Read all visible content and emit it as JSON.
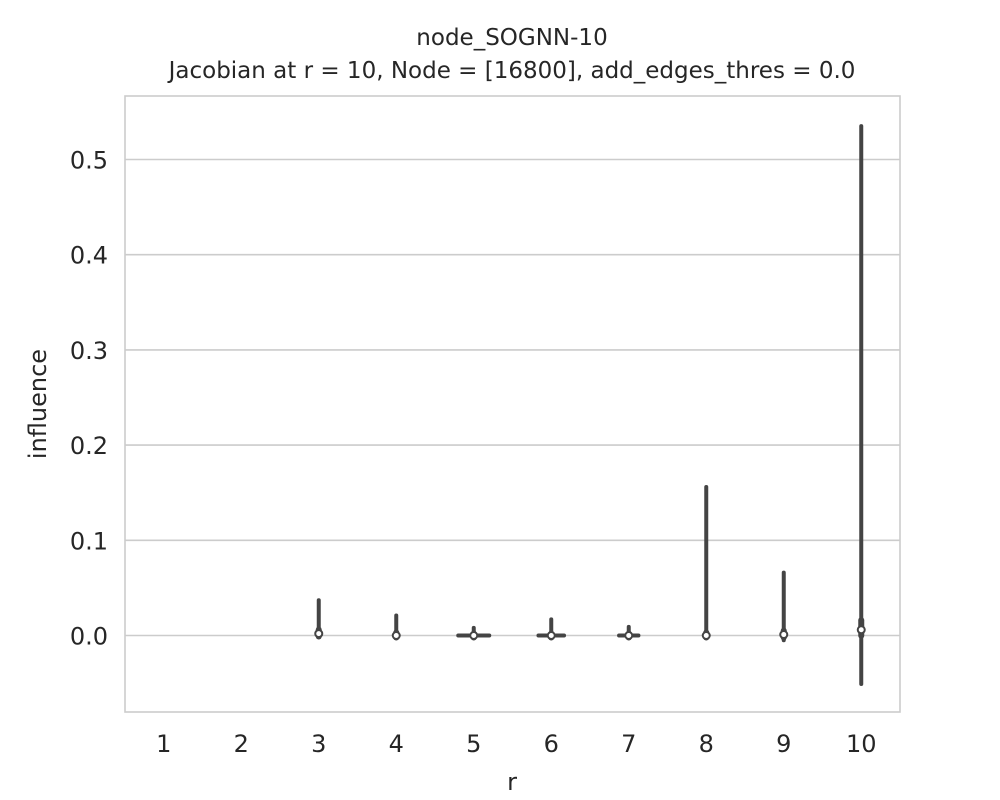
{
  "chart_data": {
    "type": "violin",
    "title": "node_SOGNN-10",
    "subtitle": "Jacobian at r = 10, Node = [16800], add_edges_thres = 0.0",
    "xlabel": "r",
    "ylabel": "influence",
    "categories": [
      "1",
      "2",
      "3",
      "4",
      "5",
      "6",
      "7",
      "8",
      "9",
      "10"
    ],
    "y_ticks": [
      "0.0",
      "0.1",
      "0.2",
      "0.3",
      "0.4",
      "0.5"
    ],
    "y_tick_values": [
      0.0,
      0.1,
      0.2,
      0.3,
      0.4,
      0.5
    ],
    "ylim": [
      -0.08,
      0.565
    ],
    "grid": true,
    "colors": {
      "marks": "#444444",
      "grid": "#cccccc",
      "median": "#ffffff"
    },
    "series": [
      {
        "r": "1",
        "min": null,
        "q1": null,
        "median": null,
        "q3": null,
        "max": null
      },
      {
        "r": "2",
        "min": null,
        "q1": null,
        "median": null,
        "q3": null,
        "max": null
      },
      {
        "r": "3",
        "min": 0.0,
        "q1": 0.001,
        "median": 0.002,
        "q3": 0.004,
        "max": 0.037
      },
      {
        "r": "4",
        "min": -0.001,
        "q1": 0.0,
        "median": 0.0,
        "q3": 0.001,
        "max": 0.021
      },
      {
        "r": "5",
        "min": -0.001,
        "q1": 0.0,
        "median": 0.0,
        "q3": 0.0,
        "max": 0.008,
        "spread": 0.4
      },
      {
        "r": "6",
        "min": -0.001,
        "q1": 0.0,
        "median": 0.0,
        "q3": 0.0,
        "max": 0.017,
        "spread": 0.33
      },
      {
        "r": "7",
        "min": -0.002,
        "q1": 0.0,
        "median": 0.0,
        "q3": 0.0,
        "max": 0.009,
        "spread": 0.25
      },
      {
        "r": "8",
        "min": -0.001,
        "q1": 0.0,
        "median": 0.0,
        "q3": 0.001,
        "max": 0.156
      },
      {
        "r": "9",
        "min": -0.005,
        "q1": 0.0,
        "median": 0.001,
        "q3": 0.003,
        "max": 0.066
      },
      {
        "r": "10",
        "min": -0.051,
        "q1": 0.002,
        "median": 0.006,
        "q3": 0.014,
        "max": 0.535
      }
    ]
  }
}
